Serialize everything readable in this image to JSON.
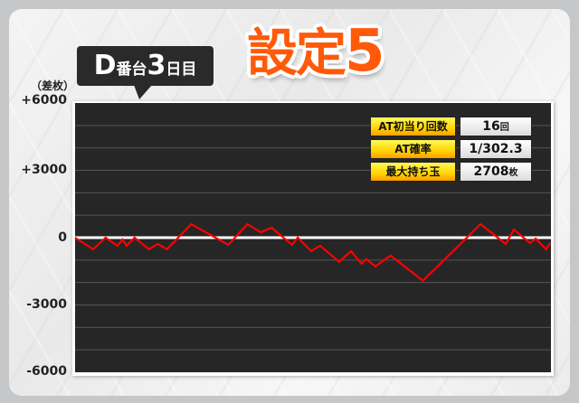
{
  "header": {
    "machine_label": {
      "prefix": "D",
      "mid": "番台",
      "day": "3",
      "suffix": "日目"
    },
    "setting_title": {
      "text": "設定",
      "number": "5"
    }
  },
  "stats": [
    {
      "label": "AT初当り回数",
      "value": "16",
      "unit": "回"
    },
    {
      "label": "AT確率",
      "value": "1/302.3",
      "unit": ""
    },
    {
      "label": "最大持ち玉",
      "value": "2708",
      "unit": "枚"
    }
  ],
  "colors": {
    "line": "#ff0000",
    "plot_bg": "#262626",
    "title": "#ff5a0a",
    "zero_line": "#ffffff",
    "grid": "#555555"
  },
  "chart_data": {
    "type": "line",
    "ylabel": "（差枚）",
    "ylim": [
      -6000,
      6000
    ],
    "yticks": [
      "+6000",
      "+3000",
      "0",
      "-3000",
      "-6000"
    ],
    "ytick_values": [
      6000,
      3000,
      0,
      -3000,
      -6000
    ],
    "grid_step": 1000,
    "grid": true,
    "xlim": [
      0,
      100
    ],
    "x": [
      0,
      3.8,
      6.4,
      8.9,
      10,
      10.8,
      12.5,
      15.5,
      17.4,
      19.3,
      24.4,
      32.2,
      36.2,
      39,
      41.3,
      45.6,
      46.8,
      49.6,
      51.5,
      55.5,
      58,
      60.2,
      61.2,
      63.1,
      66.3,
      73.1,
      85.2,
      90.5,
      92.2,
      95.6,
      96.8,
      99,
      99.8
    ],
    "y": [
      0,
      -520,
      0,
      -360,
      -80,
      -360,
      0,
      -520,
      -280,
      -520,
      600,
      -320,
      600,
      240,
      440,
      -320,
      0,
      -600,
      -360,
      -1080,
      -600,
      -1160,
      -960,
      -1280,
      -800,
      -1920,
      600,
      -280,
      360,
      -240,
      -40,
      -520,
      -240
    ]
  }
}
